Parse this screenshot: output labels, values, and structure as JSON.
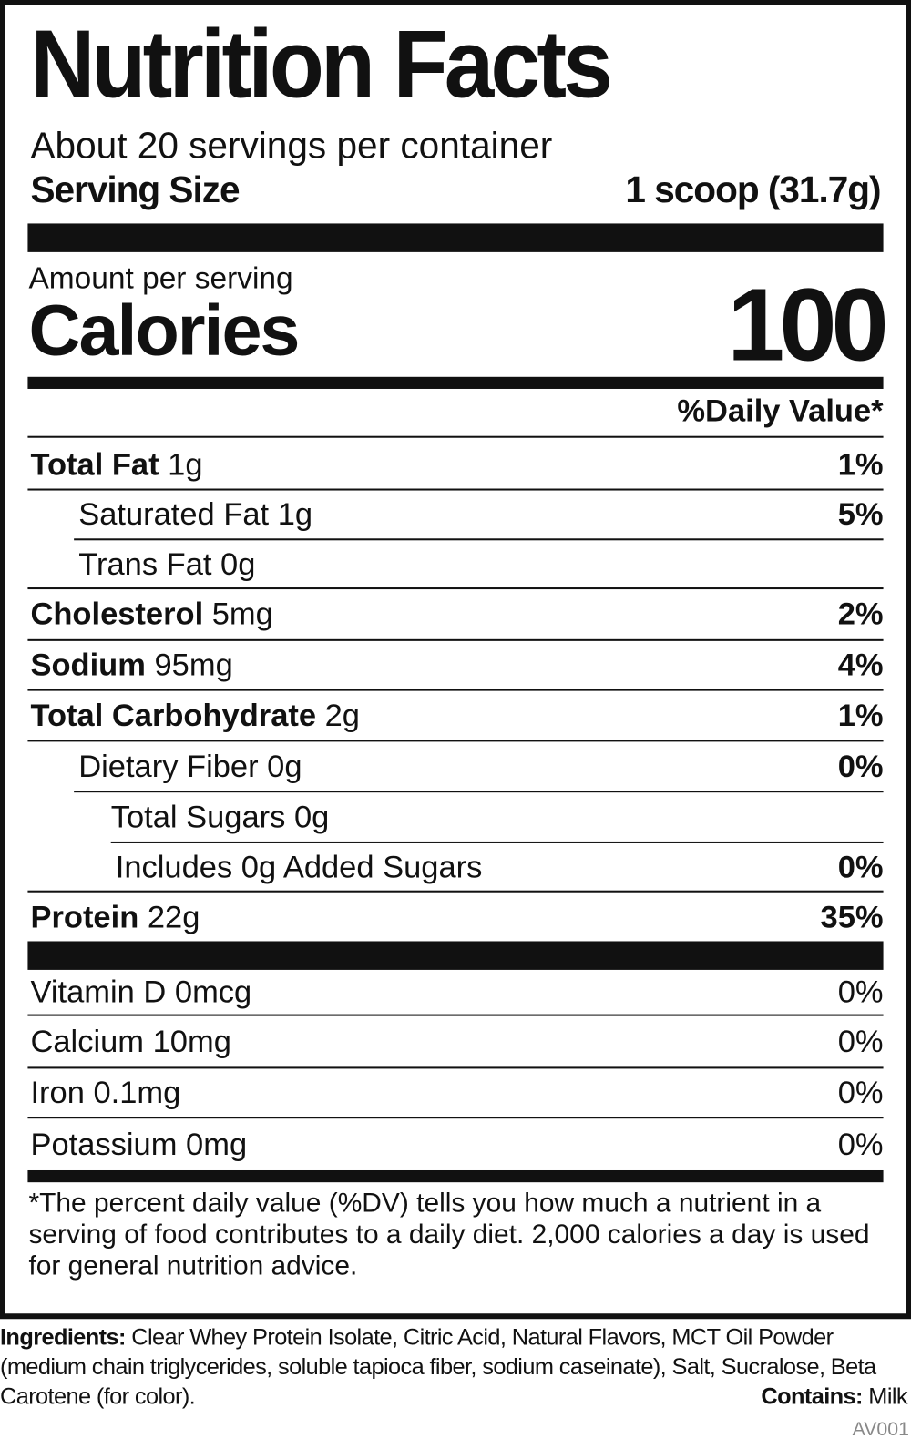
{
  "title": "Nutrition Facts",
  "servings_per_container": "About 20 servings per container",
  "serving_size": {
    "label": "Serving Size",
    "value": "1 scoop (31.7g)"
  },
  "amount_per_serving": "Amount per serving",
  "calories": {
    "label": "Calories",
    "value": "100"
  },
  "daily_value_header": "%Daily Value*",
  "nutrients": [
    {
      "name": "Total Fat",
      "amount": "1g",
      "dv": "1%"
    },
    {
      "name": "Saturated Fat",
      "amount": "1g",
      "dv": "5%"
    },
    {
      "name": "Trans Fat",
      "amount": "0g",
      "dv": ""
    },
    {
      "name": "Cholesterol",
      "amount": "5mg",
      "dv": "2%"
    },
    {
      "name": "Sodium",
      "amount": "95mg",
      "dv": "4%"
    },
    {
      "name": "Total Carbohydrate",
      "amount": "2g",
      "dv": "1%"
    },
    {
      "name": "Dietary Fiber",
      "amount": "0g",
      "dv": "0%"
    },
    {
      "name": "Total Sugars",
      "amount": "0g",
      "dv": ""
    },
    {
      "name": "Includes 0g Added Sugars",
      "amount": "",
      "dv": "0%"
    },
    {
      "name": "Protein",
      "amount": "22g",
      "dv": "35%"
    }
  ],
  "micronutrients": [
    {
      "name": "Vitamin D",
      "amount": "0mcg",
      "dv": "0%"
    },
    {
      "name": "Calcium",
      "amount": "10mg",
      "dv": "0%"
    },
    {
      "name": "Iron",
      "amount": "0.1mg",
      "dv": "0%"
    },
    {
      "name": "Potassium",
      "amount": "0mg",
      "dv": "0%"
    }
  ],
  "footnote": "*The percent daily value (%DV) tells you how much a nutrient in a serving of food contributes to a daily diet. 2,000 calories a day is used for general nutrition advice.",
  "ingredients": {
    "label": "Ingredients:",
    "text": "Clear Whey Protein Isolate, Citric Acid, Natural Flavors, MCT Oil Powder (medium chain triglycerides, soluble tapioca fiber, sodium caseinate), Salt, Sucralose, Beta Carotene (for color)."
  },
  "contains": {
    "label": "Contains:",
    "text": "Milk"
  },
  "code": "AV001"
}
